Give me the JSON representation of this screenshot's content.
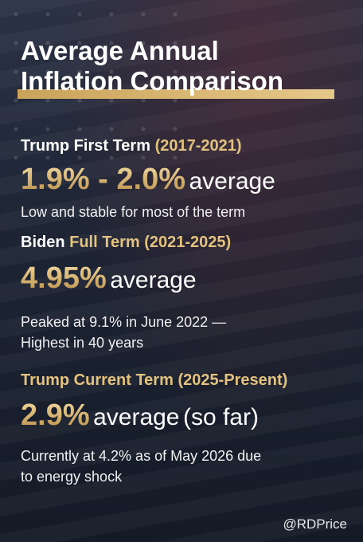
{
  "title": {
    "lines": [
      "Average Annual",
      "Inflation Comparison"
    ]
  },
  "sections": [
    {
      "heading_name": "Trump First Term",
      "heading_period": "(2017-2021)",
      "figure": "1.9% - 2.0%",
      "figure_suffix": "average",
      "note_lines": [
        "Low and stable for most of the term"
      ]
    },
    {
      "heading_name": "Biden",
      "heading_term": "Full Term",
      "heading_period": "(2021-2025)",
      "figure": "4.95%",
      "figure_suffix": "average",
      "note_lines": [
        "Peaked at 9.1% in June 2022 —",
        "Highest in 40 years"
      ]
    },
    {
      "heading_name": "Trump Current Term",
      "heading_period": "(2025-Present)",
      "figure": "2.9%",
      "figure_suffix": "average",
      "figure_extra": "(so far)",
      "note_lines": [
        "Currently at 4.2% as of May 2026 due",
        "to energy shock"
      ]
    }
  ],
  "footer": {
    "handle": "@RDPrice"
  }
}
